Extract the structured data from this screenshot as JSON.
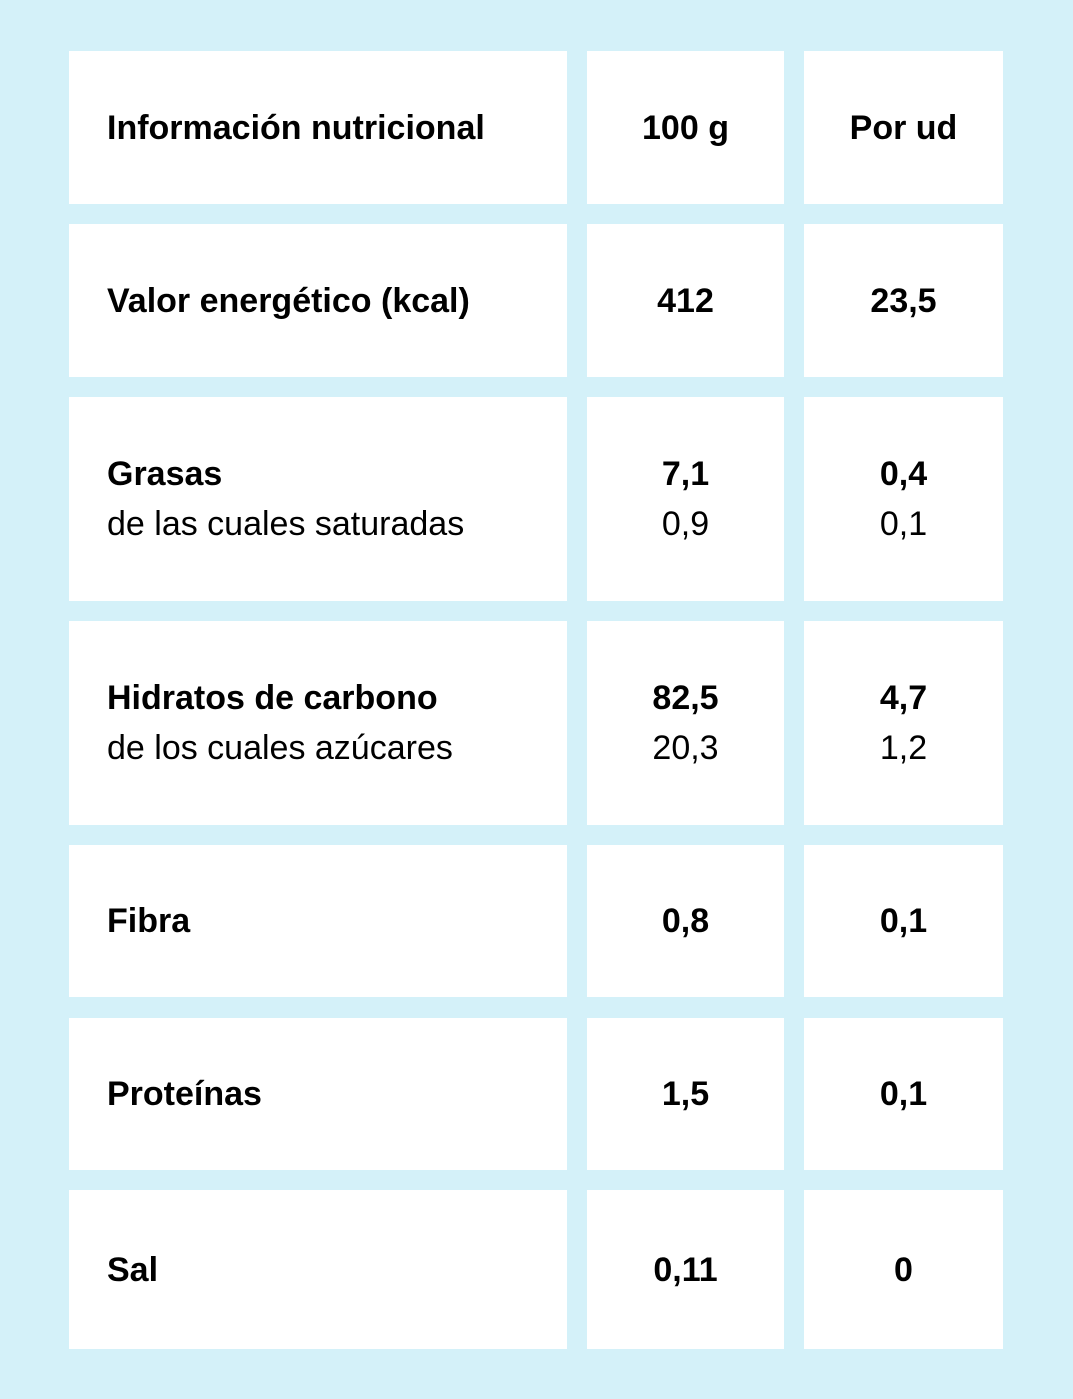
{
  "table": {
    "header": {
      "label": "Información nutricional",
      "per_100g": "100 g",
      "per_unit": "Por ud"
    },
    "rows": [
      {
        "label": "Valor energético (kcal)",
        "per_100g": "412",
        "per_unit": "23,5"
      },
      {
        "label": "Grasas",
        "sublabel": "de las cuales saturadas",
        "per_100g": "7,1",
        "sub_per_100g": "0,9",
        "per_unit": "0,4",
        "sub_per_unit": "0,1"
      },
      {
        "label": "Hidratos de carbono",
        "sublabel": "de los cuales azúcares",
        "per_100g": "82,5",
        "sub_per_100g": "20,3",
        "per_unit": "4,7",
        "sub_per_unit": "1,2"
      },
      {
        "label": "Fibra",
        "per_100g": "0,8",
        "per_unit": "0,1"
      },
      {
        "label": "Proteínas",
        "per_100g": "1,5",
        "per_unit": "0,1"
      },
      {
        "label": "Sal",
        "per_100g": "0,11",
        "per_unit": "0"
      }
    ]
  },
  "colors": {
    "background": "#d4f1f9",
    "cell": "#ffffff",
    "text": "#000000"
  }
}
